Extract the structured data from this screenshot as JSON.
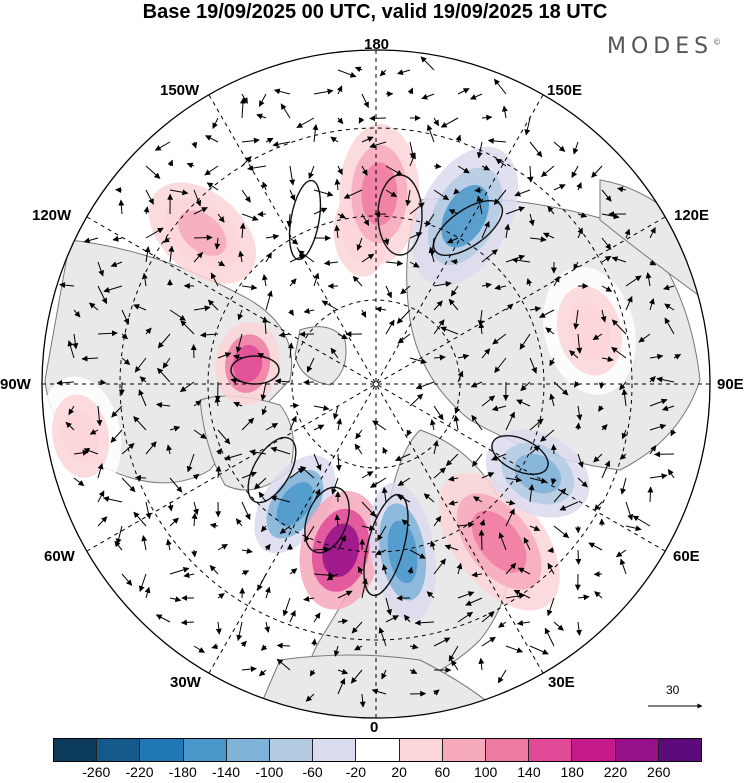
{
  "header": {
    "title": "Base 19/09/2025 00 UTC, valid 19/09/2025 18 UTC"
  },
  "brand": {
    "name": "MODES",
    "mark": "©"
  },
  "map": {
    "projection": "north polar stereographic",
    "longitude_labels": {
      "top": "180",
      "bottom": "0",
      "left": "90W",
      "right": "90E",
      "upper_left": "150W",
      "upper_right": "150E",
      "mid_upper_left": "120W",
      "mid_upper_right": "120E",
      "mid_lower_left": "60W",
      "mid_lower_right": "60E",
      "lower_left": "30W",
      "lower_right": "30E"
    },
    "anomaly_centers": [
      {
        "lon": -174,
        "value": 40
      },
      {
        "lon": 179,
        "value": 130
      },
      {
        "lon": 152,
        "value": -150
      },
      {
        "lon": -131,
        "value": 80
      },
      {
        "lon": -99,
        "value": 170
      },
      {
        "lon": -34,
        "value": -170
      },
      {
        "lon": -12,
        "value": 230
      },
      {
        "lon": 9,
        "value": -180
      },
      {
        "lon": 38,
        "value": 110
      },
      {
        "lon": 61,
        "value": -130
      },
      {
        "lon": 104,
        "value": 50
      },
      {
        "lon": -80,
        "value": 40
      }
    ]
  },
  "vector_reference": {
    "label": "30"
  },
  "colorbar": {
    "colors": [
      "#0d3b5c",
      "#155a8a",
      "#1f78b4",
      "#4a98c9",
      "#7fb3d8",
      "#b3cbe3",
      "#dbdbef",
      "#ffffff",
      "#fcd5d9",
      "#f6a9bb",
      "#f07ba2",
      "#e04a96",
      "#c51b8a",
      "#97118a",
      "#5c0c7a"
    ],
    "ticks": [
      "-260",
      "-220",
      "-180",
      "-140",
      "-100",
      "-60",
      "-20",
      "20",
      "60",
      "100",
      "140",
      "180",
      "220",
      "260"
    ]
  }
}
